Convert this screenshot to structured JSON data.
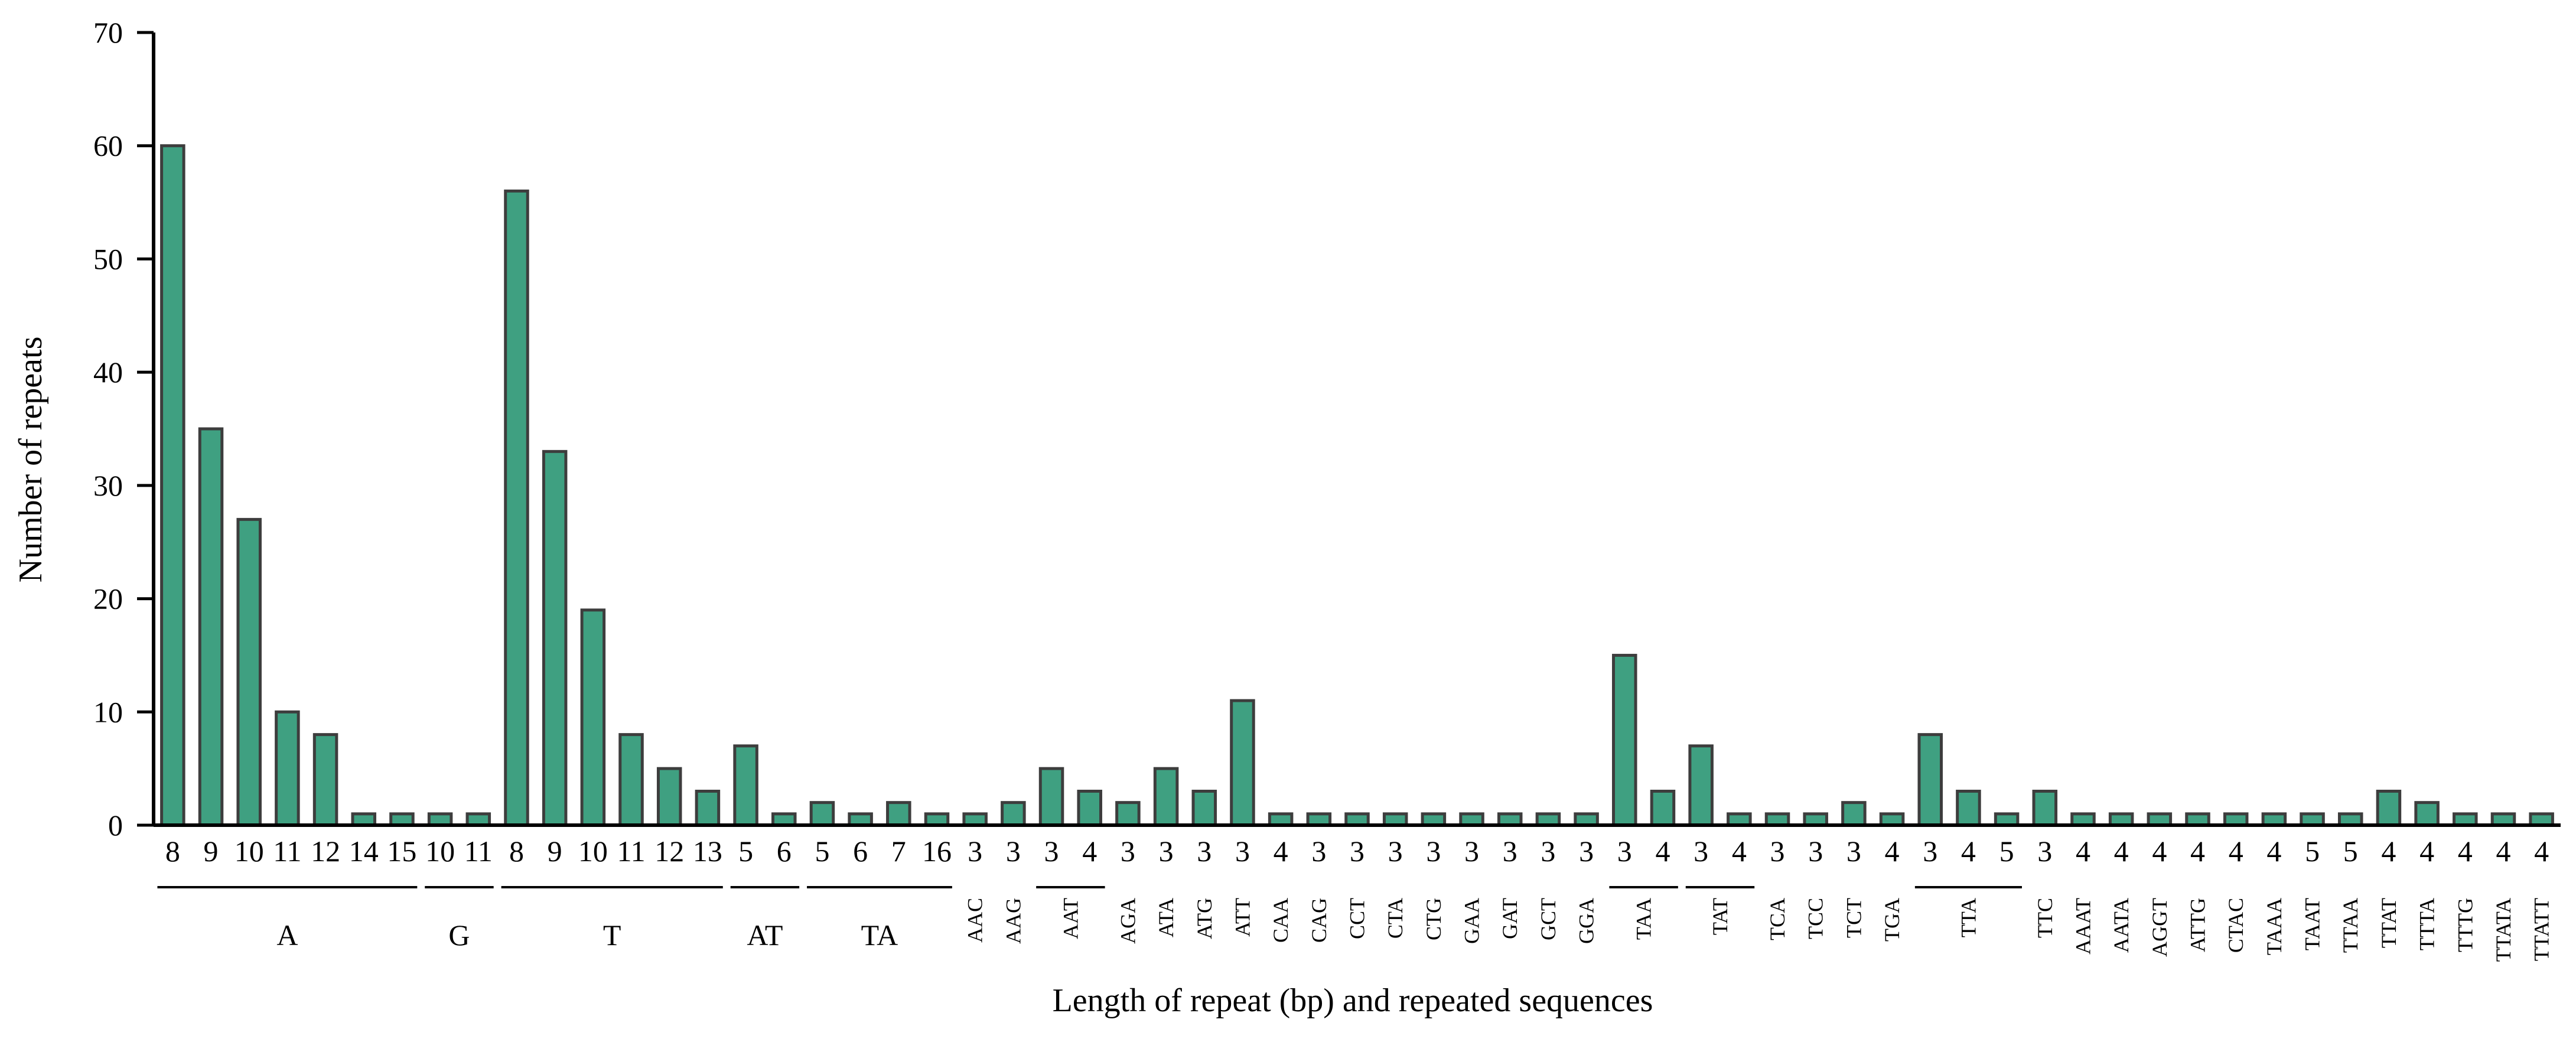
{
  "chart_data": {
    "type": "bar",
    "title": "",
    "xlabel": "Length of repeat (bp) and repeated sequences",
    "ylabel": "Number of repeats",
    "ylim": [
      0,
      70
    ],
    "yticks": [
      "0",
      "10",
      "20",
      "30",
      "40",
      "50",
      "60",
      "70"
    ],
    "bar_color": "#3fa081",
    "grid": false,
    "bars": [
      {
        "length": "8",
        "value": 60
      },
      {
        "length": "9",
        "value": 35
      },
      {
        "length": "10",
        "value": 27
      },
      {
        "length": "11",
        "value": 10
      },
      {
        "length": "12",
        "value": 8
      },
      {
        "length": "14",
        "value": 1
      },
      {
        "length": "15",
        "value": 1
      },
      {
        "length": "10",
        "value": 1
      },
      {
        "length": "11",
        "value": 1
      },
      {
        "length": "8",
        "value": 56
      },
      {
        "length": "9",
        "value": 33
      },
      {
        "length": "10",
        "value": 19
      },
      {
        "length": "11",
        "value": 8
      },
      {
        "length": "12",
        "value": 5
      },
      {
        "length": "13",
        "value": 3
      },
      {
        "length": "5",
        "value": 7
      },
      {
        "length": "6",
        "value": 1
      },
      {
        "length": "5",
        "value": 2
      },
      {
        "length": "6",
        "value": 1
      },
      {
        "length": "7",
        "value": 2
      },
      {
        "length": "16",
        "value": 1
      },
      {
        "length": "3",
        "value": 1
      },
      {
        "length": "3",
        "value": 2
      },
      {
        "length": "3",
        "value": 5
      },
      {
        "length": "4",
        "value": 3
      },
      {
        "length": "3",
        "value": 2
      },
      {
        "length": "3",
        "value": 5
      },
      {
        "length": "3",
        "value": 3
      },
      {
        "length": "3",
        "value": 11
      },
      {
        "length": "4",
        "value": 1
      },
      {
        "length": "3",
        "value": 1
      },
      {
        "length": "3",
        "value": 1
      },
      {
        "length": "3",
        "value": 1
      },
      {
        "length": "3",
        "value": 1
      },
      {
        "length": "3",
        "value": 1
      },
      {
        "length": "3",
        "value": 1
      },
      {
        "length": "3",
        "value": 1
      },
      {
        "length": "3",
        "value": 1
      },
      {
        "length": "3",
        "value": 15
      },
      {
        "length": "4",
        "value": 3
      },
      {
        "length": "3",
        "value": 7
      },
      {
        "length": "4",
        "value": 1
      },
      {
        "length": "3",
        "value": 1
      },
      {
        "length": "3",
        "value": 1
      },
      {
        "length": "3",
        "value": 2
      },
      {
        "length": "4",
        "value": 1
      },
      {
        "length": "3",
        "value": 8
      },
      {
        "length": "4",
        "value": 3
      },
      {
        "length": "5",
        "value": 1
      },
      {
        "length": "3",
        "value": 3
      },
      {
        "length": "4",
        "value": 1
      },
      {
        "length": "4",
        "value": 1
      },
      {
        "length": "4",
        "value": 1
      },
      {
        "length": "4",
        "value": 1
      },
      {
        "length": "4",
        "value": 1
      },
      {
        "length": "4",
        "value": 1
      },
      {
        "length": "5",
        "value": 1
      },
      {
        "length": "5",
        "value": 1
      },
      {
        "length": "4",
        "value": 3
      },
      {
        "length": "4",
        "value": 2
      },
      {
        "length": "4",
        "value": 1
      },
      {
        "length": "4",
        "value": 1
      },
      {
        "length": "4",
        "value": 1
      }
    ],
    "groups": [
      {
        "label": "A",
        "first": 0,
        "last": 6,
        "style": "underline"
      },
      {
        "label": "G",
        "first": 7,
        "last": 8,
        "style": "underline"
      },
      {
        "label": "T",
        "first": 9,
        "last": 14,
        "style": "underline"
      },
      {
        "label": "AT",
        "first": 15,
        "last": 16,
        "style": "underline"
      },
      {
        "label": "TA",
        "first": 17,
        "last": 20,
        "style": "underline"
      },
      {
        "label": "AAC",
        "first": 21,
        "last": 21,
        "style": "vertical"
      },
      {
        "label": "AAG",
        "first": 22,
        "last": 22,
        "style": "vertical"
      },
      {
        "label": "AAT",
        "first": 23,
        "last": 24,
        "style": "vertical-underline"
      },
      {
        "label": "AGA",
        "first": 25,
        "last": 25,
        "style": "vertical"
      },
      {
        "label": "ATA",
        "first": 26,
        "last": 26,
        "style": "vertical"
      },
      {
        "label": "ATG",
        "first": 27,
        "last": 27,
        "style": "vertical"
      },
      {
        "label": "ATT",
        "first": 28,
        "last": 28,
        "style": "vertical"
      },
      {
        "label": "CAA",
        "first": 29,
        "last": 29,
        "style": "vertical"
      },
      {
        "label": "CAG",
        "first": 30,
        "last": 30,
        "style": "vertical"
      },
      {
        "label": "CCT",
        "first": 31,
        "last": 31,
        "style": "vertical"
      },
      {
        "label": "CTA",
        "first": 32,
        "last": 32,
        "style": "vertical"
      },
      {
        "label": "CTG",
        "first": 33,
        "last": 33,
        "style": "vertical"
      },
      {
        "label": "GAA",
        "first": 34,
        "last": 34,
        "style": "vertical"
      },
      {
        "label": "GAT",
        "first": 35,
        "last": 35,
        "style": "vertical"
      },
      {
        "label": "GCT",
        "first": 36,
        "last": 36,
        "style": "vertical"
      },
      {
        "label": "GGA",
        "first": 37,
        "last": 37,
        "style": "vertical"
      },
      {
        "label": "TAA",
        "first": 38,
        "last": 39,
        "style": "vertical-underline"
      },
      {
        "label": "TAT",
        "first": 40,
        "last": 41,
        "style": "vertical-underline"
      },
      {
        "label": "TCA",
        "first": 42,
        "last": 42,
        "style": "vertical"
      },
      {
        "label": "TCC",
        "first": 43,
        "last": 43,
        "style": "vertical"
      },
      {
        "label": "TCT",
        "first": 44,
        "last": 44,
        "style": "vertical"
      },
      {
        "label": "TGA",
        "first": 45,
        "last": 45,
        "style": "vertical"
      },
      {
        "label": "TTA",
        "first": 46,
        "last": 48,
        "style": "vertical-underline"
      },
      {
        "label": "TTC",
        "first": 49,
        "last": 49,
        "style": "vertical"
      },
      {
        "label": "AAAT",
        "first": 50,
        "last": 50,
        "style": "vertical"
      },
      {
        "label": "AATA",
        "first": 51,
        "last": 51,
        "style": "vertical"
      },
      {
        "label": "AGGT",
        "first": 52,
        "last": 52,
        "style": "vertical"
      },
      {
        "label": "ATTG",
        "first": 53,
        "last": 53,
        "style": "vertical"
      },
      {
        "label": "CTAC",
        "first": 54,
        "last": 54,
        "style": "vertical"
      },
      {
        "label": "TAAA",
        "first": 55,
        "last": 55,
        "style": "vertical"
      },
      {
        "label": "TAAT",
        "first": 56,
        "last": 56,
        "style": "vertical"
      },
      {
        "label": "TTAA",
        "first": 57,
        "last": 57,
        "style": "vertical"
      },
      {
        "label": "TTAT",
        "first": 58,
        "last": 58,
        "style": "vertical"
      },
      {
        "label": "TTTA",
        "first": 59,
        "last": 59,
        "style": "vertical"
      },
      {
        "label": "TTTG",
        "first": 60,
        "last": 60,
        "style": "vertical"
      },
      {
        "label": "TTATA",
        "first": 61,
        "last": 61,
        "style": "vertical"
      },
      {
        "label": "TTATT",
        "first": 62,
        "last": 62,
        "style": "vertical"
      }
    ]
  }
}
